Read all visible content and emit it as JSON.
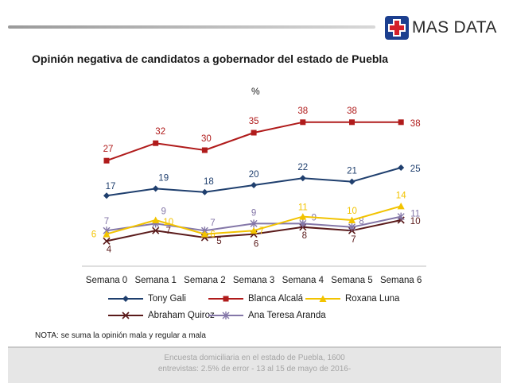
{
  "brand": {
    "name": "MAS DATA"
  },
  "colors": {
    "tony": "#1f3f6e",
    "blanca": "#b01b1b",
    "roxana": "#f2c300",
    "abraham": "#5a1a1a",
    "ana": "#8477a8"
  },
  "chart_data": {
    "type": "line",
    "title": "Opinión negativa de candidatos a gobernador del estado de Puebla",
    "unit": "%",
    "categories": [
      "Semana 0",
      "Semana 1",
      "Semana 2",
      "Semana 3",
      "Semana 4",
      "Semana 5",
      "Semana 6"
    ],
    "series": [
      {
        "name": "Tony Gali",
        "key": "tony",
        "marker": "diamond",
        "values": [
          17,
          19,
          18,
          20,
          22,
          21,
          25
        ]
      },
      {
        "name": "Blanca Alcalá",
        "key": "blanca",
        "marker": "square",
        "values": [
          27,
          32,
          30,
          35,
          38,
          38,
          38
        ]
      },
      {
        "name": "Roxana Luna",
        "key": "roxana",
        "marker": "triangle",
        "values": [
          6,
          10,
          6,
          7,
          11,
          10,
          14
        ]
      },
      {
        "name": "Abraham Quiroz",
        "key": "abraham",
        "marker": "x",
        "values": [
          4,
          7,
          5,
          6,
          8,
          7,
          10
        ]
      },
      {
        "name": "Ana Teresa Aranda",
        "key": "ana",
        "marker": "star",
        "values": [
          7,
          9,
          7,
          9,
          9,
          8,
          11
        ]
      }
    ],
    "grid": false,
    "legend_position": "bottom"
  },
  "note": "NOTA: se suma la opinión mala y regular a mala",
  "footer": {
    "line1": "Encuesta domiciliaria en el estado de Puebla, 1600",
    "line2": "entrevistas: 2.5% de error - 13 al 15 de mayo de 2016-"
  }
}
